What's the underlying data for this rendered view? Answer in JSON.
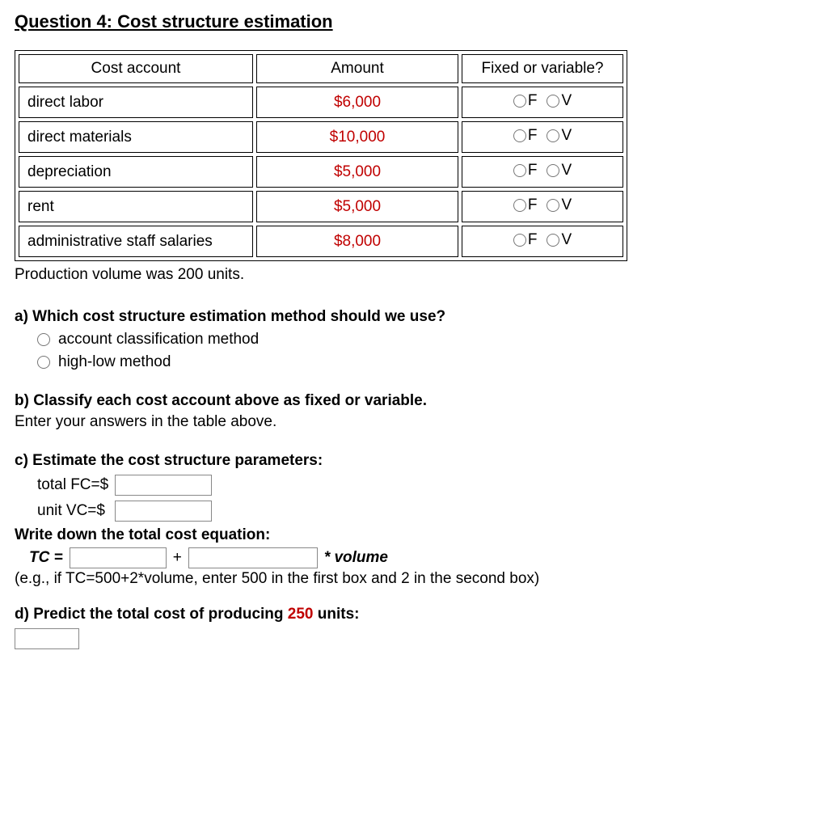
{
  "title": "Question 4: Cost structure estimation",
  "table": {
    "headers": {
      "account": "Cost account",
      "amount": "Amount",
      "fv": "Fixed or variable?"
    },
    "rows": [
      {
        "account": "direct labor",
        "amount": "$6,000",
        "f": "F",
        "v": "V"
      },
      {
        "account": "direct materials",
        "amount": "$10,000",
        "f": "F",
        "v": "V"
      },
      {
        "account": "depreciation",
        "amount": "$5,000",
        "f": "F",
        "v": "V"
      },
      {
        "account": "rent",
        "amount": "$5,000",
        "f": "F",
        "v": "V"
      },
      {
        "account": "administrative staff salaries",
        "amount": "$8,000",
        "f": "F",
        "v": "V"
      }
    ]
  },
  "production_note": "Production volume was 200 units.",
  "part_a": {
    "prompt": "a) Which cost structure estimation method should we use?",
    "options": [
      "account classification method",
      "high-low method"
    ]
  },
  "part_b": {
    "prompt": "b) Classify each cost account above as fixed or variable.",
    "instruction": "Enter your answers in the table above."
  },
  "part_c": {
    "prompt": "c) Estimate the cost structure parameters:",
    "fc_label": "total FC=$",
    "vc_label": "unit VC=$",
    "eq_header": "Write down the total cost equation:",
    "tc_label": "TC =",
    "plus": "+",
    "star_volume": "* volume",
    "hint": "(e.g., if TC=500+2*volume, enter 500 in the first box and 2 in the second box)"
  },
  "part_d": {
    "prompt_prefix": "d) Predict the total cost of producing ",
    "units": "250",
    "prompt_suffix": " units:"
  }
}
